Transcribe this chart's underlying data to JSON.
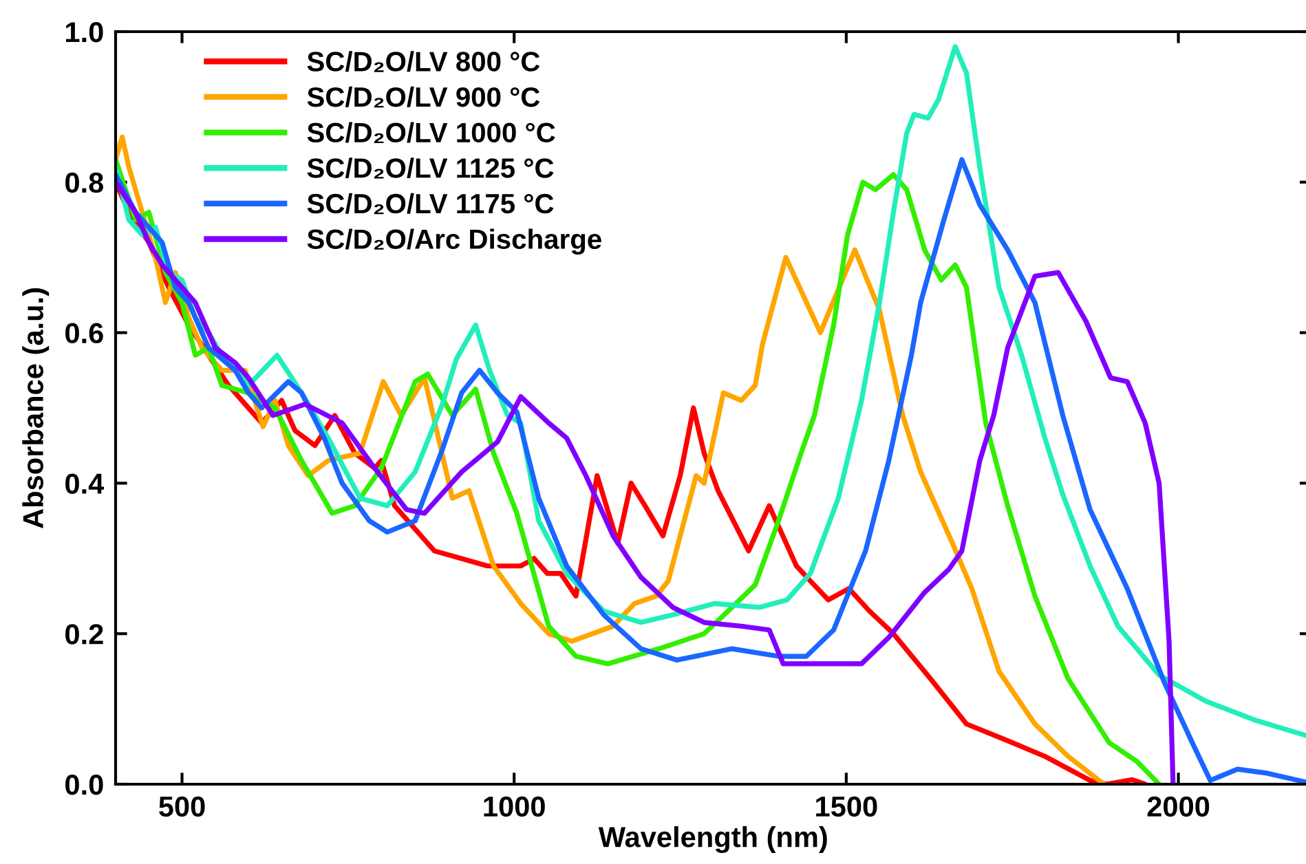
{
  "chart_data": {
    "type": "line",
    "xlabel": "Wavelength (nm)",
    "ylabel": "Absorbance (a.u.)",
    "xlim": [
      400,
      2200
    ],
    "xticks": [
      500,
      1000,
      1500,
      2000
    ],
    "ylim": [
      0,
      1.0
    ],
    "yticks": [
      {
        "value": 0,
        "label": "0.0"
      },
      0.2,
      0.4,
      0.6,
      0.8,
      {
        "value": 1.0,
        "label": "1.0"
      }
    ],
    "grid": false,
    "legend": "top left",
    "marker": "none",
    "line_style": "solid",
    "series": [
      {
        "name": "SC/D₂O/LV 800 °C",
        "color": "#ff0000",
        "x": [
          400,
          420,
          450,
          480,
          510,
          540,
          570,
          600,
          620,
          650,
          670,
          700,
          730,
          760,
          790,
          800,
          820,
          850,
          880,
          920,
          960,
          1010,
          1030,
          1050,
          1070,
          1093,
          1125,
          1156,
          1176,
          1197,
          1224,
          1250,
          1270,
          1286,
          1307,
          1330,
          1353,
          1384,
          1425,
          1446,
          1473,
          1504,
          1535,
          1571,
          1627,
          1681,
          1737,
          1799,
          1867,
          1892,
          1930,
          1950
        ],
        "values": [
          0.8,
          0.76,
          0.72,
          0.66,
          0.61,
          0.57,
          0.53,
          0.5,
          0.48,
          0.51,
          0.47,
          0.45,
          0.49,
          0.44,
          0.42,
          0.43,
          0.37,
          0.34,
          0.31,
          0.3,
          0.29,
          0.29,
          0.3,
          0.28,
          0.28,
          0.25,
          0.41,
          0.32,
          0.4,
          0.37,
          0.33,
          0.41,
          0.5,
          0.44,
          0.39,
          0.35,
          0.31,
          0.37,
          0.29,
          0.27,
          0.245,
          0.26,
          0.23,
          0.2,
          0.14,
          0.08,
          0.06,
          0.037,
          0.005,
          0.0,
          0.006,
          0.0
        ]
      },
      {
        "name": "SC/D₂O/LV 900 °C",
        "color": "#ffa500",
        "x": [
          400,
          410,
          420,
          440,
          460,
          475,
          490,
          510,
          530,
          560,
          595,
          622,
          640,
          660,
          690,
          720,
          768,
          803,
          830,
          865,
          907,
          932,
          969,
          1010,
          1052,
          1087,
          1149,
          1181,
          1214,
          1232,
          1274,
          1286,
          1315,
          1342,
          1363,
          1374,
          1409,
          1461,
          1513,
          1550,
          1585,
          1612,
          1660,
          1689,
          1730,
          1784,
          1834,
          1888
        ],
        "values": [
          0.83,
          0.86,
          0.82,
          0.76,
          0.7,
          0.64,
          0.68,
          0.62,
          0.58,
          0.55,
          0.55,
          0.475,
          0.51,
          0.45,
          0.41,
          0.43,
          0.44,
          0.535,
          0.49,
          0.54,
          0.38,
          0.39,
          0.29,
          0.24,
          0.2,
          0.19,
          0.21,
          0.24,
          0.25,
          0.27,
          0.41,
          0.4,
          0.52,
          0.51,
          0.53,
          0.585,
          0.7,
          0.6,
          0.71,
          0.63,
          0.49,
          0.415,
          0.32,
          0.26,
          0.15,
          0.08,
          0.037,
          0.0
        ]
      },
      {
        "name": "SC/D₂O/LV 1000 °C",
        "color": "#33ee00",
        "x": [
          400,
          430,
          450,
          475,
          500,
          520,
          540,
          560,
          600,
          640,
          680,
          726,
          760,
          800,
          851,
          870,
          907,
          942,
          969,
          1004,
          1052,
          1093,
          1141,
          1218,
          1286,
          1322,
          1363,
          1398,
          1432,
          1452,
          1481,
          1502,
          1525,
          1544,
          1571,
          1591,
          1618,
          1643,
          1664,
          1681,
          1710,
          1743,
          1784,
          1834,
          1896,
          1938,
          1971
        ],
        "values": [
          0.83,
          0.75,
          0.76,
          0.68,
          0.64,
          0.57,
          0.58,
          0.53,
          0.52,
          0.5,
          0.43,
          0.36,
          0.37,
          0.42,
          0.535,
          0.545,
          0.49,
          0.525,
          0.44,
          0.36,
          0.21,
          0.17,
          0.16,
          0.18,
          0.2,
          0.23,
          0.265,
          0.35,
          0.44,
          0.49,
          0.61,
          0.73,
          0.8,
          0.79,
          0.81,
          0.79,
          0.71,
          0.67,
          0.69,
          0.66,
          0.48,
          0.37,
          0.25,
          0.14,
          0.055,
          0.03,
          0.0
        ]
      },
      {
        "name": "SC/D₂O/LV 1125 °C",
        "color": "#22eebb",
        "x": [
          400,
          420,
          440,
          460,
          480,
          500,
          520,
          540,
          560,
          600,
          643,
          680,
          720,
          768,
          809,
          851,
          892,
          913,
          942,
          963,
          990,
          1010,
          1037,
          1079,
          1135,
          1191,
          1239,
          1301,
          1369,
          1411,
          1446,
          1488,
          1523,
          1550,
          1571,
          1591,
          1602,
          1623,
          1639,
          1664,
          1681,
          1701,
          1730,
          1764,
          1799,
          1826,
          1867,
          1909,
          1971,
          2042,
          2116,
          2191
        ],
        "values": [
          0.82,
          0.75,
          0.73,
          0.74,
          0.68,
          0.67,
          0.62,
          0.6,
          0.57,
          0.53,
          0.57,
          0.52,
          0.46,
          0.38,
          0.37,
          0.415,
          0.505,
          0.565,
          0.61,
          0.55,
          0.49,
          0.48,
          0.35,
          0.28,
          0.23,
          0.215,
          0.225,
          0.24,
          0.235,
          0.245,
          0.28,
          0.38,
          0.51,
          0.64,
          0.76,
          0.865,
          0.89,
          0.885,
          0.91,
          0.98,
          0.945,
          0.82,
          0.66,
          0.57,
          0.46,
          0.385,
          0.29,
          0.21,
          0.145,
          0.11,
          0.085,
          0.065
        ]
      },
      {
        "name": "SC/D₂O/LV 1175 °C",
        "color": "#1a66ff",
        "x": [
          400,
          430,
          450,
          470,
          490,
          510,
          540,
          580,
          600,
          620,
          660,
          680,
          714,
          741,
          782,
          809,
          851,
          892,
          921,
          948,
          975,
          1004,
          1037,
          1079,
          1135,
          1191,
          1245,
          1328,
          1398,
          1440,
          1481,
          1529,
          1564,
          1598,
          1612,
          1647,
          1674,
          1701,
          1743,
          1784,
          1826,
          1867,
          1923,
          1979,
          2021,
          2048,
          2089,
          2131,
          2191
        ],
        "values": [
          0.81,
          0.76,
          0.74,
          0.72,
          0.66,
          0.64,
          0.58,
          0.55,
          0.52,
          0.5,
          0.535,
          0.52,
          0.46,
          0.4,
          0.35,
          0.335,
          0.35,
          0.445,
          0.52,
          0.55,
          0.52,
          0.495,
          0.38,
          0.29,
          0.225,
          0.18,
          0.165,
          0.18,
          0.17,
          0.17,
          0.205,
          0.31,
          0.43,
          0.57,
          0.64,
          0.75,
          0.83,
          0.77,
          0.71,
          0.64,
          0.49,
          0.365,
          0.26,
          0.135,
          0.055,
          0.005,
          0.02,
          0.015,
          0.003
        ]
      },
      {
        "name": "SC/D₂O/Arc Discharge",
        "color": "#8000ff",
        "x": [
          400,
          430,
          450,
          470,
          490,
          520,
          550,
          580,
          600,
          637,
          685,
          741,
          790,
          838,
          865,
          921,
          975,
          1010,
          1052,
          1079,
          1108,
          1149,
          1191,
          1239,
          1286,
          1342,
          1384,
          1405,
          1452,
          1523,
          1564,
          1618,
          1654,
          1674,
          1701,
          1722,
          1743,
          1784,
          1819,
          1861,
          1898,
          1923,
          1950,
          1971,
          1986,
          1992
        ],
        "values": [
          0.8,
          0.76,
          0.72,
          0.69,
          0.67,
          0.64,
          0.58,
          0.56,
          0.54,
          0.49,
          0.505,
          0.48,
          0.42,
          0.365,
          0.36,
          0.415,
          0.455,
          0.515,
          0.48,
          0.46,
          0.41,
          0.33,
          0.275,
          0.235,
          0.215,
          0.21,
          0.205,
          0.16,
          0.16,
          0.16,
          0.195,
          0.255,
          0.285,
          0.31,
          0.43,
          0.49,
          0.58,
          0.675,
          0.68,
          0.615,
          0.54,
          0.535,
          0.48,
          0.4,
          0.19,
          0.0
        ]
      }
    ]
  }
}
